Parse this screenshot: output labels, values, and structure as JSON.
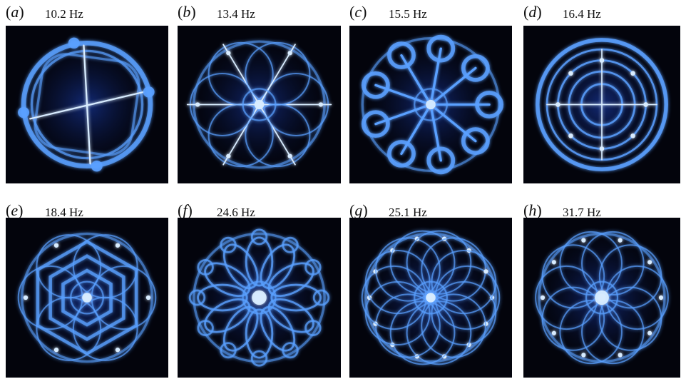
{
  "figure": {
    "panels": [
      {
        "open": "(",
        "letter": "a",
        "close": ")",
        "frequency": "10.2 Hz",
        "pattern": "ring-cross",
        "folds": 4
      },
      {
        "open": "(",
        "letter": "b",
        "close": ")",
        "frequency": "13.4 Hz",
        "pattern": "hexagonal-rings",
        "folds": 6
      },
      {
        "open": "(",
        "letter": "c",
        "close": ")",
        "frequency": "15.5 Hz",
        "pattern": "star-loops",
        "folds": 9
      },
      {
        "open": "(",
        "letter": "d",
        "close": ")",
        "frequency": "16.4 Hz",
        "pattern": "concentric-rings",
        "folds": 4
      },
      {
        "open": "(",
        "letter": "e",
        "close": ")",
        "frequency": "18.4 Hz",
        "pattern": "nested-polygons",
        "folds": 6
      },
      {
        "open": "(",
        "letter": "f",
        "close": ")",
        "frequency": "24.6 Hz",
        "pattern": "flower-loops",
        "folds": 12
      },
      {
        "open": "(",
        "letter": "g",
        "close": ")",
        "frequency": "25.1 Hz",
        "pattern": "lattice",
        "folds": 14
      },
      {
        "open": "(",
        "letter": "h",
        "close": ")",
        "frequency": "31.7 Hz",
        "pattern": "rose-lattice",
        "folds": 10
      }
    ],
    "colors": {
      "background": "#03040c",
      "glow": "#5aa0ff",
      "core": "#d8ecff",
      "deep": "#1d46c8"
    }
  }
}
